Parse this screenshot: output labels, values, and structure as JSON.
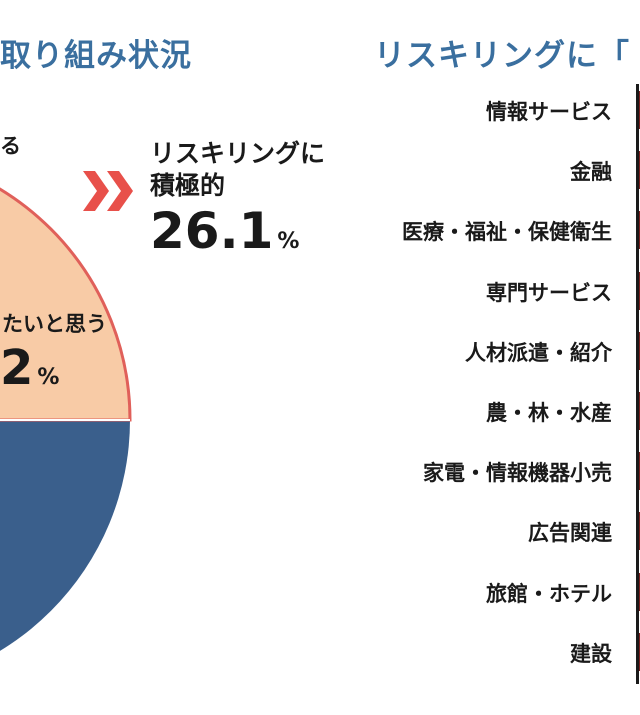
{
  "titles": {
    "left": "取り組み状況",
    "right": "リスキリングに「"
  },
  "pie": {
    "label_top": "る",
    "label_mid": "たいと思う",
    "label_mid_value": "2",
    "pct_symbol": "%"
  },
  "callout": {
    "line1": "リスキリングに",
    "line2": "積極的",
    "value": "26.1",
    "pct_symbol": "%"
  },
  "colors": {
    "title": "#3a6f9f",
    "pie_peach": "#f8cba6",
    "pie_blue": "#3a5f8c",
    "pie_outline": "#e0605a",
    "chevron": "#e8504a",
    "bar": "#7a1e1e"
  },
  "chart_data": [
    {
      "type": "pie",
      "title": "取り組み状況",
      "slices": [
        {
          "label": "リスキリングに積極的",
          "value": 26.1
        },
        {
          "label": "たいと思う",
          "value": null
        },
        {
          "label": "",
          "value": null
        }
      ]
    },
    {
      "type": "bar",
      "title": "リスキリングに「",
      "orientation": "horizontal",
      "categories": [
        "情報サービス",
        "金融",
        "医療・福祉・保健衛生",
        "専門サービス",
        "人材派遣・紹介",
        "農・林・水産",
        "家電・情報機器小売",
        "広告関連",
        "旅館・ホテル",
        "建設"
      ]
    }
  ]
}
